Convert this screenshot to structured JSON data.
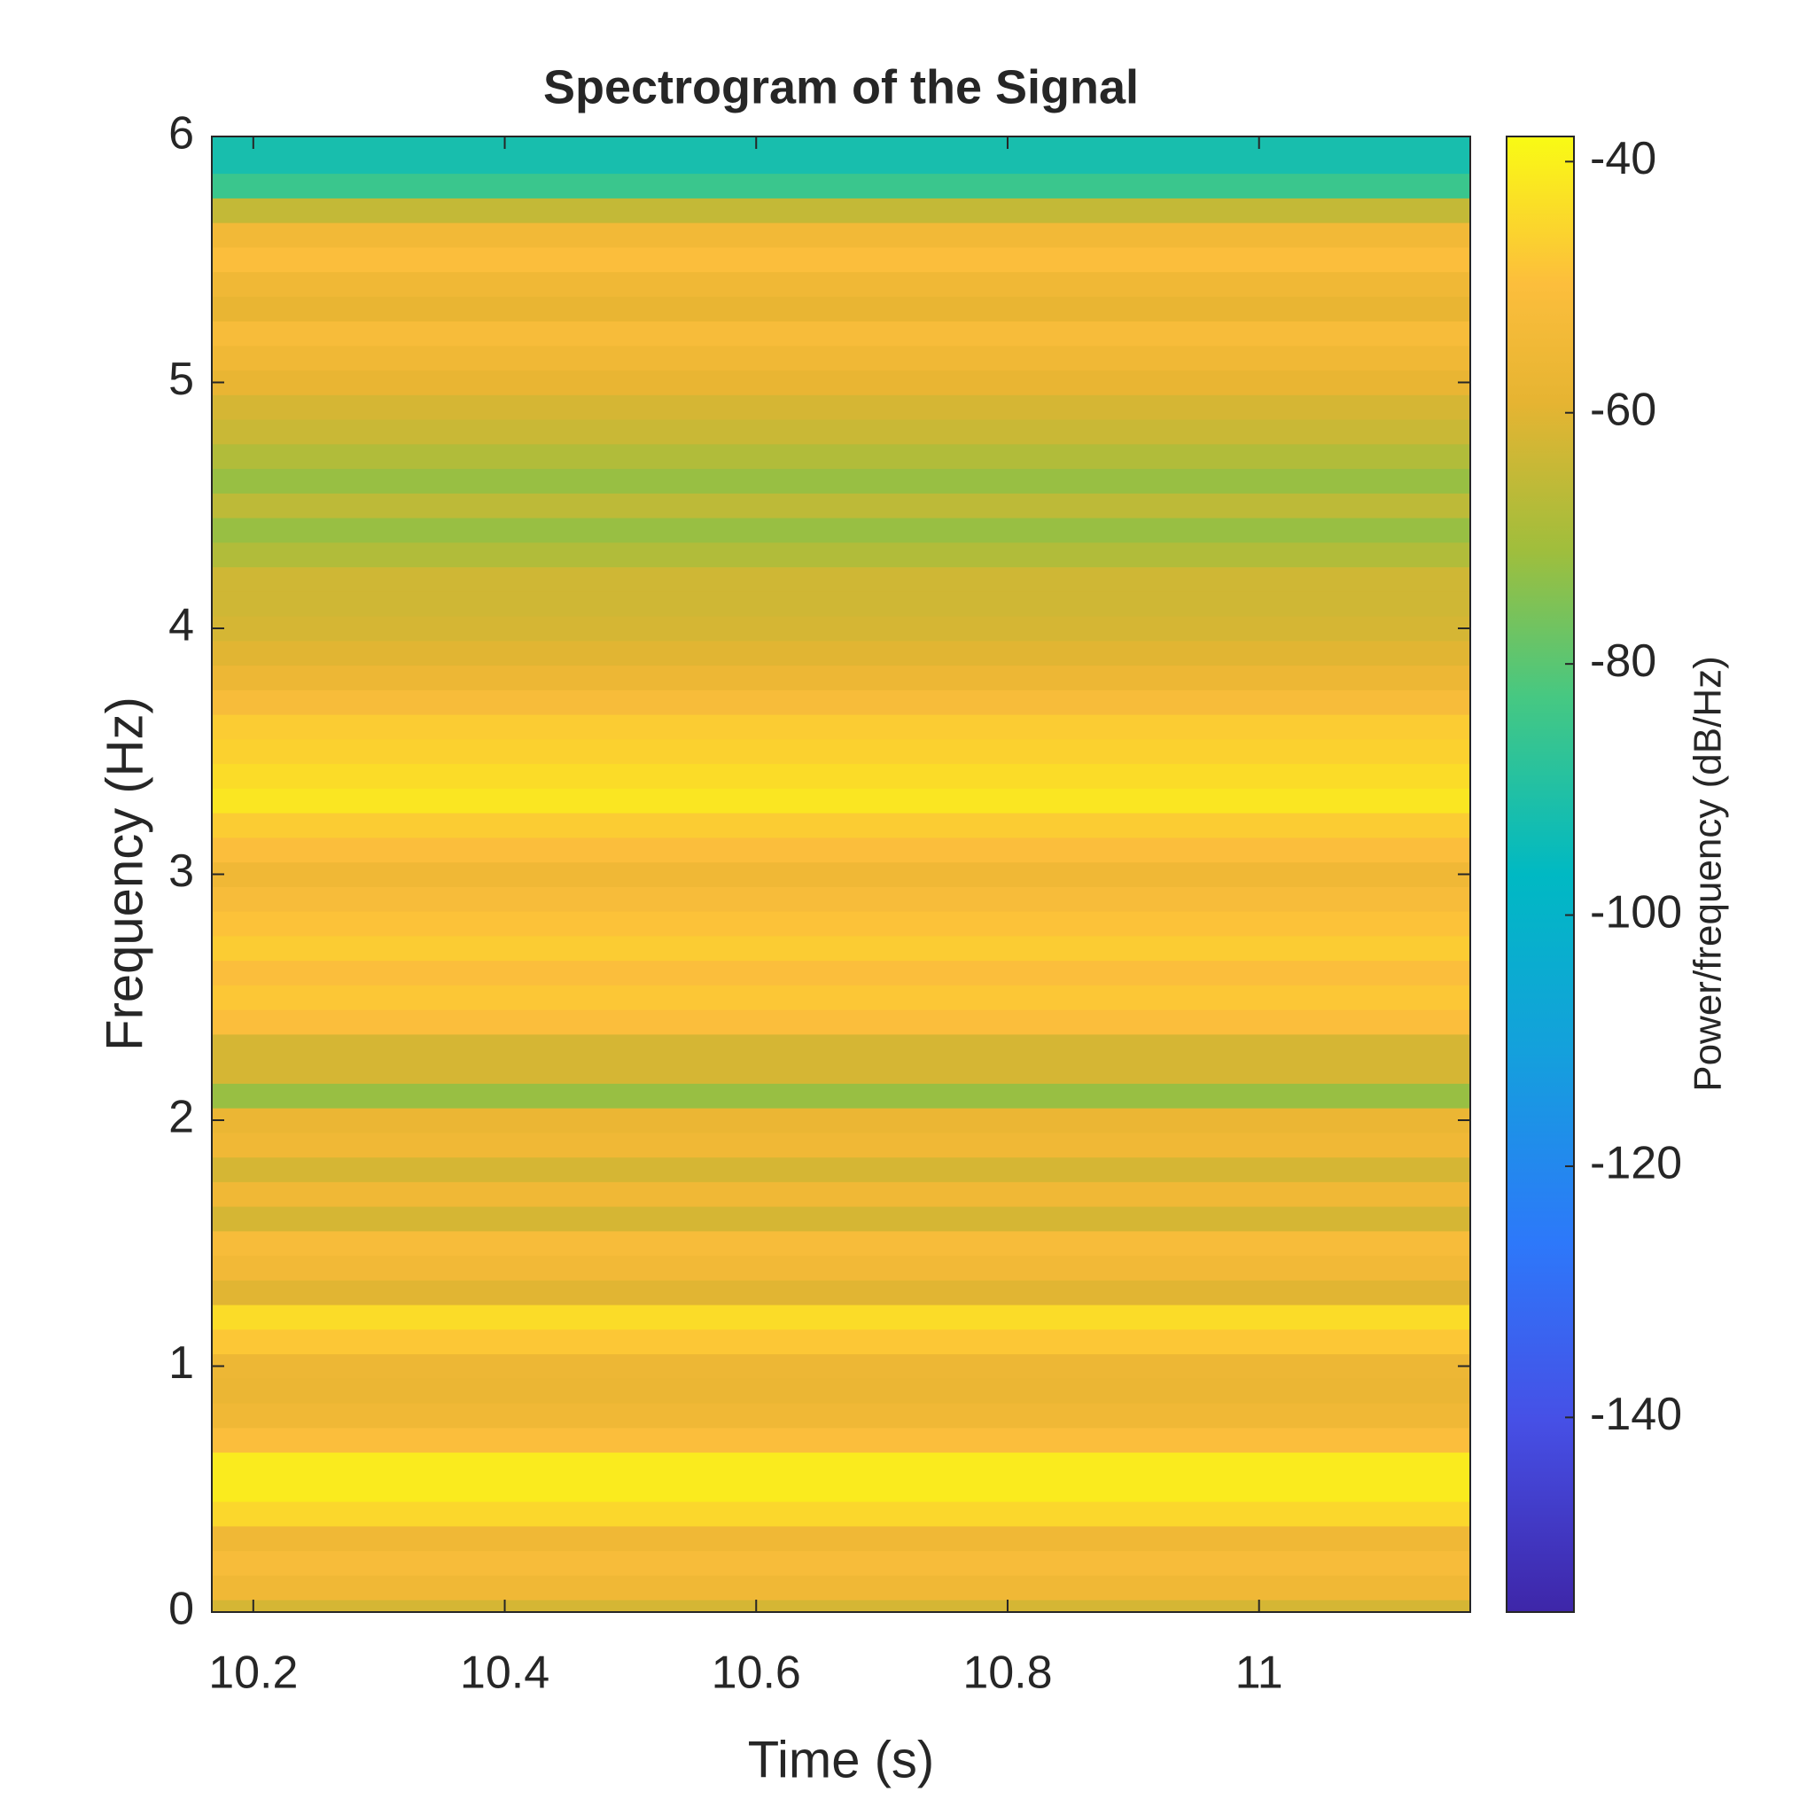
{
  "chart_data": {
    "type": "spectrogram",
    "title": "Spectrogram of the Signal",
    "x_label": "Time (s)",
    "y_label": "Frequency (Hz)",
    "colorbar_label": "Power/frequency (dB/Hz)",
    "xlim": [
      10.167,
      11.168
    ],
    "xticks": [
      10.2,
      10.4,
      10.6,
      10.8,
      11
    ],
    "ylim": [
      0,
      6
    ],
    "yticks": [
      0,
      1,
      2,
      3,
      4,
      5,
      6
    ],
    "clim": [
      -155.5,
      -38
    ],
    "cticks": [
      -40,
      -60,
      -80,
      -100,
      -120,
      -140
    ],
    "colormap": "parula",
    "y": [
      0,
      0.1,
      0.2,
      0.3,
      0.4,
      0.5,
      0.6,
      0.7,
      0.8,
      0.9,
      1,
      1.1,
      1.2,
      1.3,
      1.4,
      1.5,
      1.6,
      1.7,
      1.8,
      1.9,
      2,
      2.1,
      2.2,
      2.3,
      2.4,
      2.5,
      2.6,
      2.7,
      2.8,
      2.9,
      3,
      3.1,
      3.2,
      3.3,
      3.4,
      3.5,
      3.6,
      3.7,
      3.8,
      3.9,
      4,
      4.1,
      4.2,
      4.3,
      4.4,
      4.5,
      4.6,
      4.7,
      4.8,
      4.9,
      5,
      5.1,
      5.2,
      5.3,
      5.4,
      5.5,
      5.6,
      5.7,
      5.8,
      5.9,
      6
    ],
    "values": [
      -62,
      -55,
      -52,
      -55,
      -45,
      -41,
      -41,
      -50,
      -55,
      -57,
      -56,
      -48,
      -44,
      -60,
      -54,
      -52,
      -62,
      -55,
      -62,
      -55,
      -57,
      -72,
      -62,
      -62,
      -50,
      -48,
      -50,
      -47,
      -49,
      -52,
      -55,
      -50,
      -47,
      -42,
      -44,
      -46,
      -47,
      -52,
      -56,
      -60,
      -62,
      -63,
      -63,
      -68,
      -72,
      -66,
      -72,
      -68,
      -64,
      -62,
      -58,
      -55,
      -52,
      -58,
      -55,
      -50,
      -54,
      -65,
      -85,
      -92,
      -92
    ]
  }
}
